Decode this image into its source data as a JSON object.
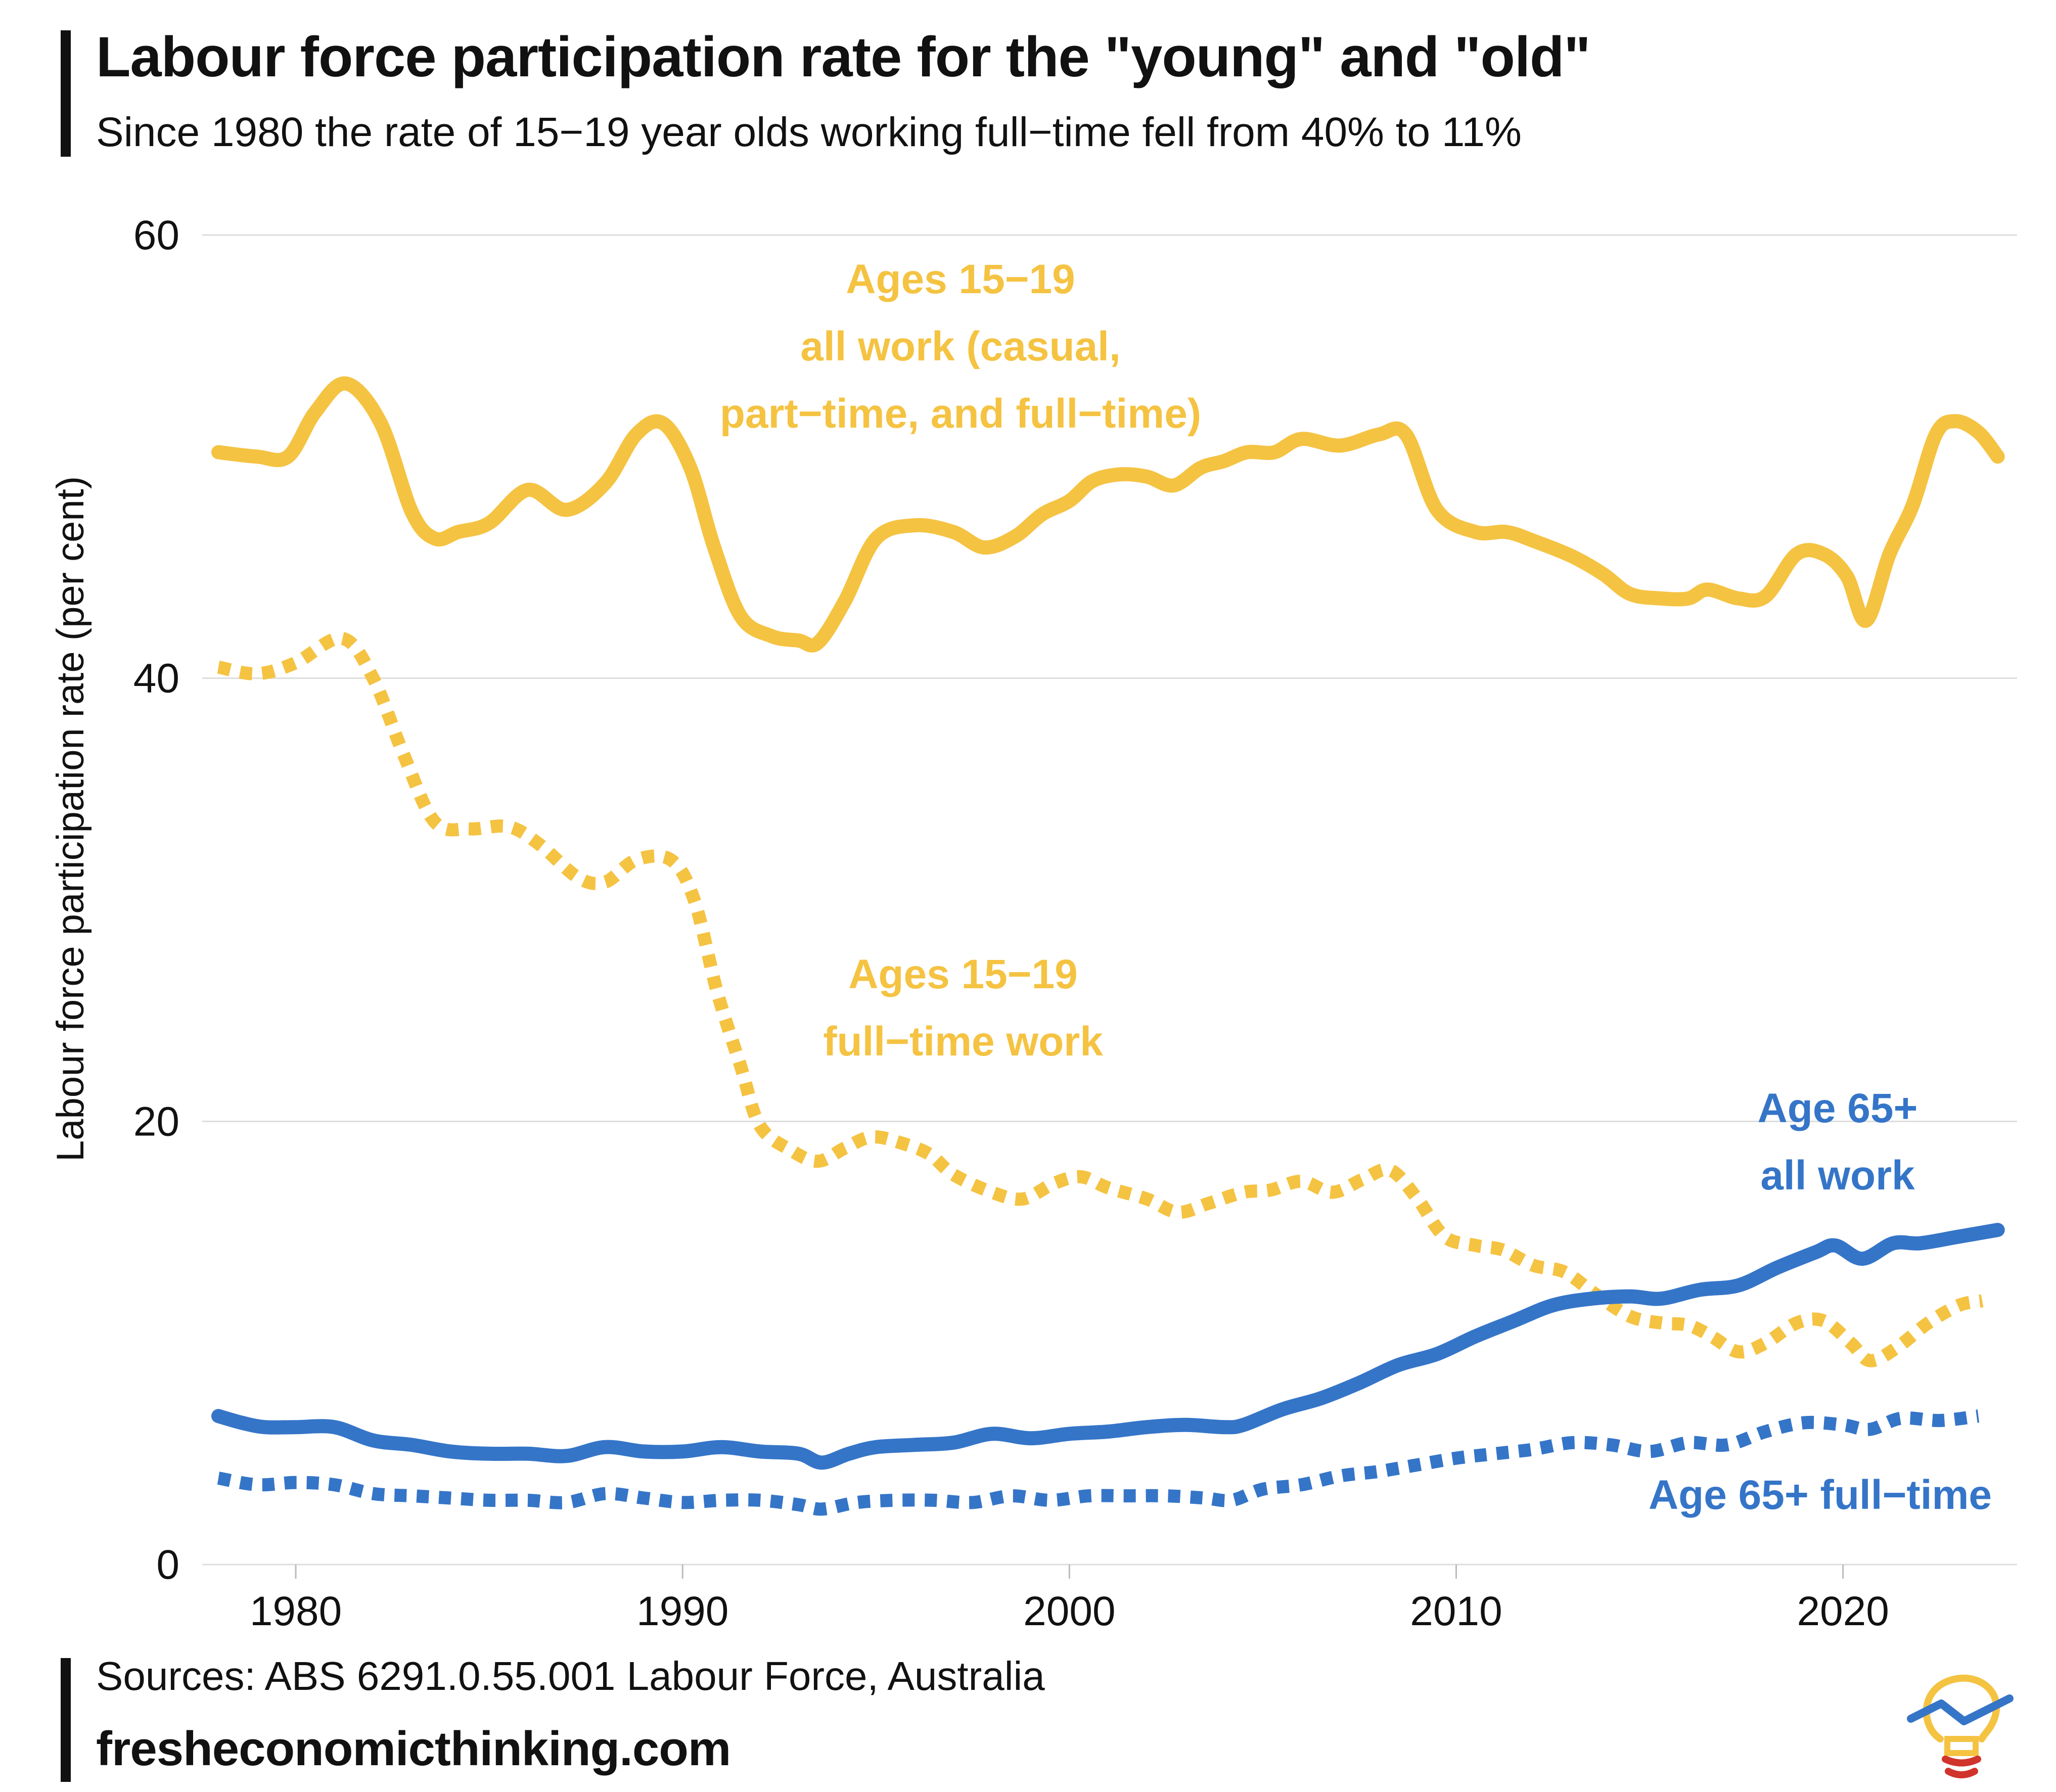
{
  "header": {
    "title": "Labour force participation rate for the \"young\" and \"old\"",
    "subtitle": "Since 1980 the rate of 15−19 year olds working full−time fell from 40% to 11%"
  },
  "footer": {
    "source": "Sources: ABS 6291.0.55.001 Labour Force, Australia",
    "website": "fresheconomicthinking.com"
  },
  "colors": {
    "youth": "#F5C342",
    "senior": "#3575C8",
    "grid": "#DDDDDD",
    "text": "#111111"
  },
  "logo": {
    "icon": "lightbulb-chart-icon"
  },
  "chart_data": {
    "type": "line",
    "title": "Labour force participation rate for the \"young\" and \"old\"",
    "subtitle": "Since 1980 the rate of 15−19 year olds working full−time fell from 40% to 11%",
    "xlabel": "",
    "ylabel": "Labour force participation rate (per cent)",
    "xlim": [
      1978,
      2024.5
    ],
    "ylim": [
      0,
      60
    ],
    "xticks": [
      1980,
      1990,
      2000,
      2010,
      2020
    ],
    "yticks": [
      0,
      20,
      40,
      60
    ],
    "grid": "horizontal",
    "legend": "none",
    "annotations": [
      {
        "series": "youth_all",
        "lines": [
          "Ages 15−19",
          "all work (casual,",
          "part−time, and full−time)"
        ]
      },
      {
        "series": "youth_ft",
        "lines": [
          "Ages 15−19",
          "full−time work"
        ]
      },
      {
        "series": "senior_all",
        "lines": [
          "Age 65+",
          "all work"
        ]
      },
      {
        "series": "senior_ft",
        "lines": [
          "Age 65+ full−time"
        ]
      }
    ],
    "series": [
      {
        "id": "youth_all",
        "color": "youth",
        "style": "solid",
        "points": [
          [
            1978,
            50.2
          ],
          [
            1979,
            50.0
          ],
          [
            1979.8,
            50.0
          ],
          [
            1980.5,
            52.0
          ],
          [
            1981.3,
            53.3
          ],
          [
            1982.2,
            51.5
          ],
          [
            1983.0,
            47.5
          ],
          [
            1983.6,
            46.3
          ],
          [
            1984.2,
            46.6
          ],
          [
            1985.0,
            47.0
          ],
          [
            1986.0,
            48.5
          ],
          [
            1987.0,
            47.6
          ],
          [
            1988.0,
            48.8
          ],
          [
            1988.8,
            51.0
          ],
          [
            1989.5,
            51.5
          ],
          [
            1990.2,
            49.5
          ],
          [
            1990.8,
            46.0
          ],
          [
            1991.5,
            42.8
          ],
          [
            1992.3,
            41.9
          ],
          [
            1993.0,
            41.7
          ],
          [
            1993.5,
            41.6
          ],
          [
            1994.2,
            43.5
          ],
          [
            1995.0,
            46.3
          ],
          [
            1996.0,
            46.9
          ],
          [
            1997.0,
            46.6
          ],
          [
            1997.8,
            45.9
          ],
          [
            1998.6,
            46.4
          ],
          [
            1999.3,
            47.4
          ],
          [
            2000.0,
            48.0
          ],
          [
            2000.6,
            48.9
          ],
          [
            2001.3,
            49.2
          ],
          [
            2002.0,
            49.1
          ],
          [
            2002.7,
            48.7
          ],
          [
            2003.4,
            49.5
          ],
          [
            2004.0,
            49.8
          ],
          [
            2004.6,
            50.2
          ],
          [
            2005.3,
            50.2
          ],
          [
            2006.0,
            50.8
          ],
          [
            2007.0,
            50.5
          ],
          [
            2008.0,
            51.0
          ],
          [
            2008.7,
            51.0
          ],
          [
            2009.5,
            47.6
          ],
          [
            2010.5,
            46.6
          ],
          [
            2011.3,
            46.6
          ],
          [
            2012.0,
            46.2
          ],
          [
            2013.0,
            45.5
          ],
          [
            2013.8,
            44.7
          ],
          [
            2014.5,
            43.8
          ],
          [
            2015.3,
            43.6
          ],
          [
            2016.0,
            43.6
          ],
          [
            2016.5,
            44.0
          ],
          [
            2017.3,
            43.6
          ],
          [
            2018.0,
            43.7
          ],
          [
            2018.8,
            45.6
          ],
          [
            2019.5,
            45.6
          ],
          [
            2020.1,
            44.6
          ],
          [
            2020.6,
            42.6
          ],
          [
            2021.2,
            45.6
          ],
          [
            2021.8,
            47.8
          ],
          [
            2022.4,
            51.0
          ],
          [
            2022.9,
            51.6
          ],
          [
            2023.5,
            51.1
          ],
          [
            2024.0,
            50.0
          ]
        ]
      },
      {
        "id": "youth_ft",
        "color": "youth",
        "style": "dotted",
        "points": [
          [
            1978,
            40.5
          ],
          [
            1979,
            40.2
          ],
          [
            1980,
            40.7
          ],
          [
            1981.2,
            41.8
          ],
          [
            1982.0,
            40.0
          ],
          [
            1982.8,
            36.5
          ],
          [
            1983.6,
            33.5
          ],
          [
            1984.5,
            33.2
          ],
          [
            1985.5,
            33.3
          ],
          [
            1986.3,
            32.5
          ],
          [
            1987.3,
            31.0
          ],
          [
            1988.0,
            30.8
          ],
          [
            1988.8,
            31.8
          ],
          [
            1989.7,
            31.8
          ],
          [
            1990.3,
            30.0
          ],
          [
            1990.9,
            25.8
          ],
          [
            1991.5,
            22.5
          ],
          [
            1992.0,
            19.8
          ],
          [
            1992.8,
            18.7
          ],
          [
            1993.5,
            18.2
          ],
          [
            1994.2,
            18.8
          ],
          [
            1994.9,
            19.3
          ],
          [
            1995.7,
            19.0
          ],
          [
            1996.4,
            18.5
          ],
          [
            1997.0,
            17.6
          ],
          [
            1998.0,
            16.8
          ],
          [
            1998.8,
            16.5
          ],
          [
            1999.6,
            17.2
          ],
          [
            2000.3,
            17.5
          ],
          [
            2001.0,
            17.0
          ],
          [
            2002.0,
            16.5
          ],
          [
            2002.8,
            15.9
          ],
          [
            2003.6,
            16.3
          ],
          [
            2004.5,
            16.8
          ],
          [
            2005.2,
            16.9
          ],
          [
            2006.0,
            17.3
          ],
          [
            2006.8,
            16.8
          ],
          [
            2007.6,
            17.4
          ],
          [
            2008.3,
            17.8
          ],
          [
            2009.0,
            16.5
          ],
          [
            2009.7,
            14.8
          ],
          [
            2010.5,
            14.4
          ],
          [
            2011.2,
            14.2
          ],
          [
            2012.0,
            13.5
          ],
          [
            2012.8,
            13.2
          ],
          [
            2013.6,
            12.2
          ],
          [
            2014.5,
            11.2
          ],
          [
            2015.3,
            10.9
          ],
          [
            2016.0,
            10.8
          ],
          [
            2016.6,
            10.3
          ],
          [
            2017.3,
            9.6
          ],
          [
            2018.0,
            10.0
          ],
          [
            2018.8,
            10.9
          ],
          [
            2019.5,
            11.0
          ],
          [
            2020.2,
            10.0
          ],
          [
            2020.7,
            9.2
          ],
          [
            2021.4,
            9.8
          ],
          [
            2022.2,
            10.9
          ],
          [
            2023.0,
            11.7
          ],
          [
            2023.6,
            11.9
          ]
        ]
      },
      {
        "id": "senior_all",
        "color": "senior",
        "style": "solid",
        "points": [
          [
            1978,
            6.7
          ],
          [
            1978.6,
            6.4
          ],
          [
            1979.2,
            6.2
          ],
          [
            1980,
            6.2
          ],
          [
            1981,
            6.2
          ],
          [
            1982,
            5.6
          ],
          [
            1983,
            5.4
          ],
          [
            1984,
            5.1
          ],
          [
            1985,
            5.0
          ],
          [
            1986,
            5.0
          ],
          [
            1987,
            4.9
          ],
          [
            1988,
            5.3
          ],
          [
            1989,
            5.1
          ],
          [
            1990,
            5.1
          ],
          [
            1991,
            5.3
          ],
          [
            1992,
            5.1
          ],
          [
            1993,
            5.0
          ],
          [
            1993.6,
            4.6
          ],
          [
            1994.3,
            5.0
          ],
          [
            1995,
            5.3
          ],
          [
            1996,
            5.4
          ],
          [
            1997,
            5.5
          ],
          [
            1998,
            5.9
          ],
          [
            1999,
            5.7
          ],
          [
            2000,
            5.9
          ],
          [
            2001,
            6.0
          ],
          [
            2002,
            6.2
          ],
          [
            2003,
            6.3
          ],
          [
            2004,
            6.2
          ],
          [
            2004.5,
            6.3
          ],
          [
            2005.5,
            7.0
          ],
          [
            2006.5,
            7.5
          ],
          [
            2007.5,
            8.2
          ],
          [
            2008.5,
            9.0
          ],
          [
            2009.5,
            9.5
          ],
          [
            2010.5,
            10.3
          ],
          [
            2011.5,
            11.0
          ],
          [
            2012.5,
            11.7
          ],
          [
            2013.5,
            12.0
          ],
          [
            2014.5,
            12.1
          ],
          [
            2015.3,
            12.0
          ],
          [
            2016.3,
            12.4
          ],
          [
            2017.3,
            12.6
          ],
          [
            2018.3,
            13.4
          ],
          [
            2019.3,
            14.1
          ],
          [
            2019.8,
            14.4
          ],
          [
            2020.5,
            13.8
          ],
          [
            2021.3,
            14.5
          ],
          [
            2022.0,
            14.5
          ],
          [
            2023.0,
            14.8
          ],
          [
            2024.0,
            15.1
          ]
        ]
      },
      {
        "id": "senior_ft",
        "color": "senior",
        "style": "dotted",
        "points": [
          [
            1978,
            3.9
          ],
          [
            1979,
            3.6
          ],
          [
            1980,
            3.7
          ],
          [
            1981,
            3.6
          ],
          [
            1982,
            3.2
          ],
          [
            1983,
            3.1
          ],
          [
            1984,
            3.0
          ],
          [
            1985,
            2.9
          ],
          [
            1986,
            2.9
          ],
          [
            1987,
            2.8
          ],
          [
            1988,
            3.2
          ],
          [
            1989,
            3.0
          ],
          [
            1990,
            2.8
          ],
          [
            1991,
            2.9
          ],
          [
            1992,
            2.9
          ],
          [
            1993,
            2.7
          ],
          [
            1993.6,
            2.5
          ],
          [
            1994.5,
            2.8
          ],
          [
            1995.5,
            2.9
          ],
          [
            1996.5,
            2.9
          ],
          [
            1997.5,
            2.8
          ],
          [
            1998.5,
            3.1
          ],
          [
            1999.5,
            2.9
          ],
          [
            2000.5,
            3.1
          ],
          [
            2001.5,
            3.1
          ],
          [
            2002.5,
            3.1
          ],
          [
            2003.5,
            3.0
          ],
          [
            2004.2,
            2.9
          ],
          [
            2005.0,
            3.4
          ],
          [
            2006.0,
            3.6
          ],
          [
            2007.0,
            4.0
          ],
          [
            2008.0,
            4.2
          ],
          [
            2009.0,
            4.5
          ],
          [
            2010.0,
            4.8
          ],
          [
            2011.0,
            5.0
          ],
          [
            2012.0,
            5.2
          ],
          [
            2013.0,
            5.5
          ],
          [
            2014.0,
            5.4
          ],
          [
            2015.0,
            5.1
          ],
          [
            2016.0,
            5.5
          ],
          [
            2017.0,
            5.4
          ],
          [
            2018.0,
            6.0
          ],
          [
            2019.0,
            6.4
          ],
          [
            2020.0,
            6.3
          ],
          [
            2020.7,
            6.1
          ],
          [
            2021.5,
            6.6
          ],
          [
            2022.5,
            6.5
          ],
          [
            2023.5,
            6.7
          ]
        ]
      }
    ]
  }
}
